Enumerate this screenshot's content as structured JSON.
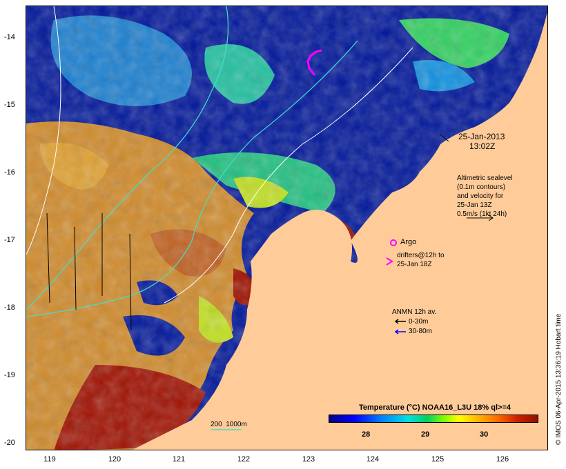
{
  "map": {
    "date": "25-Jan-2013",
    "time": "13:02Z",
    "y_ticks": [
      "-14",
      "-15",
      "-16",
      "-17",
      "-18",
      "-19",
      "-20"
    ],
    "x_ticks": [
      "119",
      "120",
      "121",
      "122",
      "123",
      "124",
      "125",
      "126"
    ],
    "legend_sealevel": "Altimetric sealevel\n(0.1m contours)\nand velocity for\n25-Jan 13Z\n0.5m/s (1kt 24h)",
    "legend_argo": "Argo",
    "legend_drifters": "drifters@12h to\n25-Jan 18Z",
    "legend_anmn_title": "ANMN 12h av.",
    "legend_anmn_0_30": "0-30m",
    "legend_anmn_30_80": "30-80m",
    "isobath_label": "200  1000m",
    "colorbar_title": "Temperature (°C) NOAA16_L3U 18% ql>=4",
    "colorbar_ticks": [
      "28",
      "29",
      "30"
    ],
    "credit": "© IMOS 06-Apr-2015 13:36:19 Hobart time",
    "colors": {
      "land": "#ffcc99",
      "cold": "#000088",
      "mid": "#00d060",
      "warm": "#d08020",
      "hot": "#a01000",
      "argo": "#ff00ff",
      "isobath_200": "#40e0d0",
      "isobath_1000": "#ffffff",
      "anmn_deep": "#0000ff"
    }
  }
}
